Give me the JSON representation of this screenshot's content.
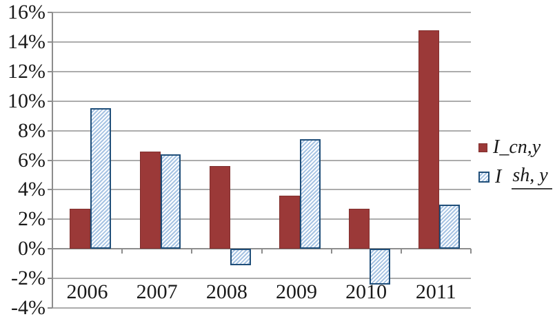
{
  "chart_data": {
    "type": "bar",
    "title": "",
    "xlabel": "",
    "ylabel": "",
    "categories": [
      "2006",
      "2007",
      "2008",
      "2009",
      "2010",
      "2011"
    ],
    "series": [
      {
        "name": "I_cn,y",
        "values": [
          2.7,
          6.6,
          5.6,
          3.6,
          2.7,
          14.8
        ],
        "color": "#9B3938",
        "border_color": "#802F2D",
        "hatch": false
      },
      {
        "name": "I_sh, y",
        "values": [
          9.5,
          6.4,
          -1.1,
          7.4,
          -2.4,
          3.0
        ],
        "color": "#A6C3E3",
        "border_color": "#1F4E79",
        "hatch": true
      }
    ],
    "ylim": [
      -4,
      16
    ],
    "ytick_step": 2,
    "yticks": [
      {
        "value": 16,
        "label": "16%"
      },
      {
        "value": 14,
        "label": "14%"
      },
      {
        "value": 12,
        "label": "12%"
      },
      {
        "value": 10,
        "label": "10%"
      },
      {
        "value": 8,
        "label": "8%"
      },
      {
        "value": 6,
        "label": "6%"
      },
      {
        "value": 4,
        "label": "4%"
      },
      {
        "value": 2,
        "label": "2%"
      },
      {
        "value": 0,
        "label": "0%"
      },
      {
        "value": -2,
        "label": "-2%"
      },
      {
        "value": -4,
        "label": "-4%"
      }
    ],
    "grid": true,
    "legend_position": "right",
    "legend": {
      "items": [
        {
          "prefix": "I_cn,y",
          "underlined": ""
        },
        {
          "prefix": "I ",
          "underlined": "sh, y"
        }
      ]
    }
  },
  "colors": {
    "background": "#FFFFFF",
    "gridline": "#ACACAC",
    "axis": "#8C8C8C",
    "text": "#1A1A1A",
    "series_red": "#9B3938",
    "series_blue_border": "#1F4E79",
    "series_blue_hatch": "#A6C3E3"
  }
}
